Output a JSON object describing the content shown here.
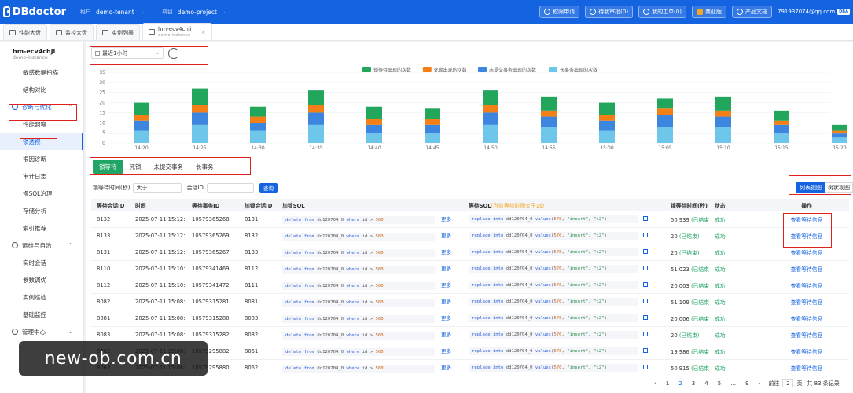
{
  "app": {
    "logo": "DBdoctor"
  },
  "topbar": {
    "tenant_label": "租户",
    "tenant_value": "demo-tenant",
    "project_label": "项目",
    "project_value": "demo-project",
    "buttons": [
      "权限申请",
      "待我审批(0)",
      "我的工单(0)",
      "商业版",
      "产品文档"
    ],
    "user": "791937074@qq.com",
    "user_badge": "DBA"
  },
  "page_tabs": [
    {
      "label": "性能大盘"
    },
    {
      "label": "监控大盘"
    },
    {
      "label": "实例列表"
    },
    {
      "label": "hm-ecv4chji",
      "sub": "demo-instance",
      "close": "×"
    }
  ],
  "sidebar": {
    "instance_name": "hm-ecv4chji",
    "instance_sub": "demo-instance",
    "items_top": [
      "敏感数据扫描",
      "结构对比"
    ],
    "group_diag": "诊断与优化",
    "items_diag": [
      "性能洞察",
      "锁透视",
      "根因诊断",
      "审计日志",
      "慢SQL治理",
      "存储分析",
      "索引推荐"
    ],
    "group_ops": "运维与自治",
    "items_ops": [
      "实时会话",
      "参数调优",
      "实例巡检",
      "基础监控"
    ],
    "group_mgmt": "管理中心"
  },
  "filter": {
    "time_range": "最近1小时"
  },
  "chart_data": {
    "type": "bar",
    "stacked": true,
    "legend": [
      "锁等待出现的次数",
      "死锁出现的次数",
      "未提交事务出现的次数",
      "长事务出现的次数"
    ],
    "colors": [
      "#22a65c",
      "#f47f17",
      "#3c86e0",
      "#6ec6ea"
    ],
    "ylim": [
      0,
      35
    ],
    "yticks": [
      0,
      5,
      10,
      15,
      20,
      25,
      30,
      35
    ],
    "xticks": [
      "14:20",
      "14:25",
      "14:30",
      "14:35",
      "14:40",
      "14:45",
      "14:50",
      "14:55",
      "15:00",
      "15:05",
      "15:10",
      "15:15",
      "15:20"
    ],
    "series": [
      {
        "name": "锁等待出现的次数",
        "values": [
          6,
          8,
          5,
          7,
          6,
          5,
          7,
          7,
          6,
          5,
          7,
          5,
          3
        ]
      },
      {
        "name": "死锁出现的次数",
        "values": [
          3,
          4,
          3,
          4,
          3,
          3,
          4,
          3,
          3,
          3,
          3,
          2,
          1
        ]
      },
      {
        "name": "未提交事务出现的次数",
        "values": [
          5,
          6,
          4,
          6,
          4,
          4,
          6,
          5,
          5,
          6,
          5,
          4,
          2
        ]
      },
      {
        "name": "长事务出现的次数",
        "values": [
          6,
          9,
          6,
          9,
          5,
          5,
          9,
          8,
          6,
          8,
          8,
          5,
          3
        ]
      }
    ]
  },
  "subtabs": [
    "锁等待",
    "死锁",
    "未提交事务",
    "长事务"
  ],
  "query": {
    "wait_label": "锁等待时间(秒)",
    "op": "大于",
    "session_label": "会话ID",
    "btn": "查询"
  },
  "view_switch": [
    "列表视图",
    "树状视图"
  ],
  "table": {
    "headers": [
      "等待会话ID",
      "时间",
      "等待事务ID",
      "加锁会话ID",
      "加锁SQL",
      "等待SQL",
      "锁等待时间(秒)",
      "状态",
      "操作"
    ],
    "wait_sql_note": "(当前等待时间大于1s)",
    "more": "更多",
    "action": "查看等待信息",
    "lock_sql": [
      "delete from ",
      "dd120704_0",
      " where ",
      "id",
      " > ",
      "560"
    ],
    "wait_sql": [
      "replace into ",
      "dd120704_0",
      " values(",
      "570",
      ", ",
      "\"insert\"",
      ", ",
      "\"t2\"",
      ")"
    ],
    "rows": [
      {
        "wait_id": "8132",
        "time": "2025-07-11 15:12:23",
        "tx": "10579365268",
        "lock_id": "8131",
        "secs": "50.939",
        "flag": "(已结束)",
        "status": "成功"
      },
      {
        "wait_id": "8133",
        "time": "2025-07-11 15:12:03",
        "tx": "10579365269",
        "lock_id": "8132",
        "secs": "20",
        "flag": "(已结束)",
        "status": "成功"
      },
      {
        "wait_id": "8131",
        "time": "2025-07-11 15:12:03",
        "tx": "10579365267",
        "lock_id": "8133",
        "secs": "20",
        "flag": "(已结束)",
        "status": "成功"
      },
      {
        "wait_id": "8110",
        "time": "2025-07-11 15:10:12",
        "tx": "10579341469",
        "lock_id": "8112",
        "secs": "51.023",
        "flag": "(已结束)",
        "status": "成功"
      },
      {
        "wait_id": "8112",
        "time": "2025-07-11 15:10:12",
        "tx": "10579341472",
        "lock_id": "8111",
        "secs": "20.003",
        "flag": "(已结束)",
        "status": "成功"
      },
      {
        "wait_id": "8082",
        "time": "2025-07-11 15:08:21",
        "tx": "10579315281",
        "lock_id": "8081",
        "secs": "51.109",
        "flag": "(已结束)",
        "status": "成功"
      },
      {
        "wait_id": "8081",
        "time": "2025-07-11 15:08:01",
        "tx": "10579315280",
        "lock_id": "8083",
        "secs": "20.006",
        "flag": "(已结束)",
        "status": "成功"
      },
      {
        "wait_id": "8083",
        "time": "2025-07-11 15:08:01",
        "tx": "10579315282",
        "lock_id": "8082",
        "secs": "20",
        "flag": "(已结束)",
        "status": "成功"
      },
      {
        "wait_id": "8062",
        "time": "2025-07-11 15:06:10",
        "tx": "10579295882",
        "lock_id": "8061",
        "secs": "19.986",
        "flag": "(已结束)",
        "status": "成功"
      },
      {
        "wait_id": "8063",
        "time": "2025-07-11 15:06:10",
        "tx": "10579295880",
        "lock_id": "8062",
        "secs": "50.915",
        "flag": "(已结束)",
        "status": "成功"
      }
    ]
  },
  "pager": {
    "prev": "‹",
    "pages": [
      "1",
      "2",
      "3",
      "4",
      "5",
      "…",
      "9"
    ],
    "next": "›",
    "goto": "前往",
    "goto_value": "2",
    "unit": "页",
    "total": "共 83 条记录"
  },
  "watermark": "new-ob.com.cn"
}
